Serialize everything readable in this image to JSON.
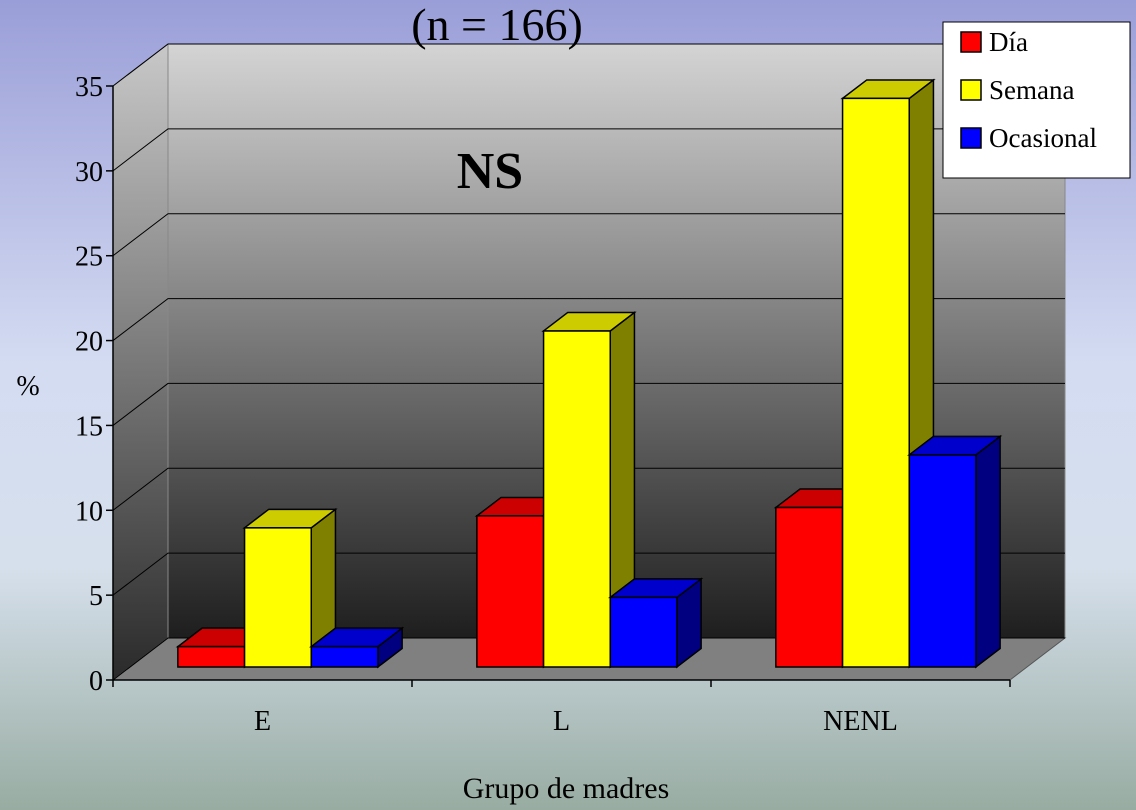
{
  "chart_data": {
    "type": "bar3d",
    "title": "(n = 166)",
    "annotation": "NS",
    "x_label": "Grupo de madres",
    "y_label": "%",
    "categories": [
      "E",
      "L",
      "NENL"
    ],
    "series": [
      {
        "name": "Día",
        "color": "#ff0000",
        "values": [
          1.2,
          8.9,
          9.4
        ]
      },
      {
        "name": "Semana",
        "color": "#ffff00",
        "values": [
          8.2,
          19.8,
          33.5
        ]
      },
      {
        "name": "Ocasional",
        "color": "#0000ff",
        "values": [
          1.2,
          4.1,
          12.5
        ]
      }
    ],
    "ylim": [
      0,
      35
    ],
    "yticks": [
      0,
      5,
      10,
      15,
      20,
      25,
      30,
      35
    ],
    "grid": true,
    "legend": "top-right"
  }
}
